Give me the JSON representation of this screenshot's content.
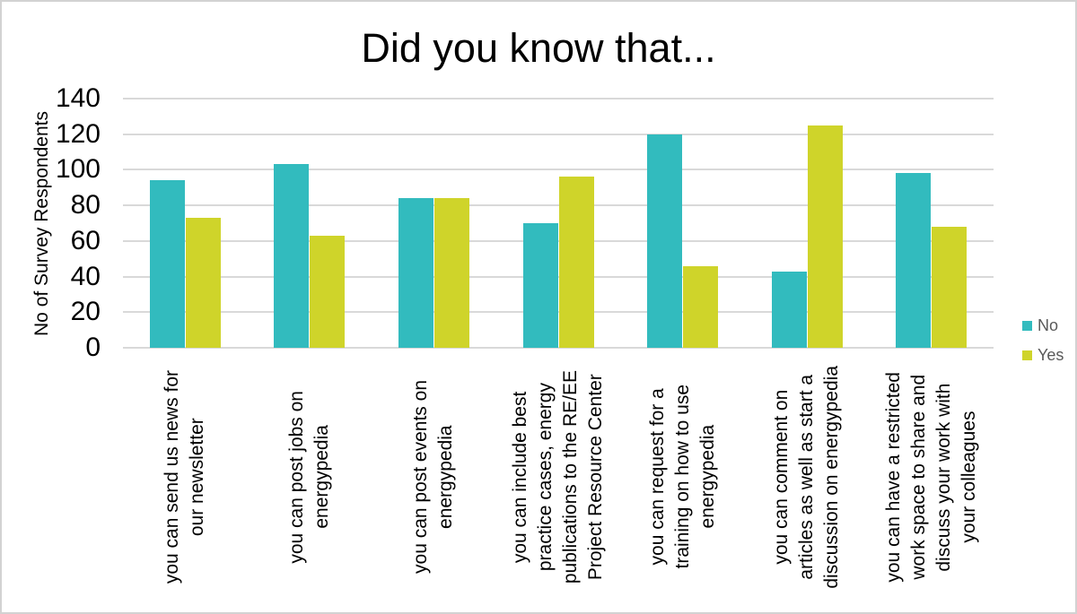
{
  "chart_data": {
    "type": "bar",
    "title": "Did you know that...",
    "xlabel": "",
    "ylabel": "No of Survey Respondents",
    "ylim": [
      0,
      140
    ],
    "ytick_step": 20,
    "grid": true,
    "legend_position": "right",
    "categories": [
      "you can send us news for\nour newsletter",
      "you can post jobs on\nenergypedia",
      "you can post events on\nenergypedia",
      "you can include best\npractice cases, energy\npublications to the RE/EE\nProject Resource Center",
      "you can request for a\ntraining on how to use\nenergypedia",
      "you can comment on\narticles as well as start a\ndiscussion on energypedia",
      "you can have a restricted\nwork space to share and\ndiscuss your work with\nyour colleagues"
    ],
    "series": [
      {
        "name": "No",
        "color": "#32BBBE",
        "values": [
          94,
          103,
          84,
          70,
          120,
          43,
          98
        ]
      },
      {
        "name": "Yes",
        "color": "#CFD42A",
        "values": [
          73,
          63,
          84,
          96,
          46,
          125,
          68
        ]
      }
    ]
  },
  "colors": {
    "gridline": "#D9D9D9",
    "axis_text": "#000000",
    "legend_text": "#595959",
    "frame_border": "#D2D2D2",
    "background": "#FFFFFF"
  }
}
